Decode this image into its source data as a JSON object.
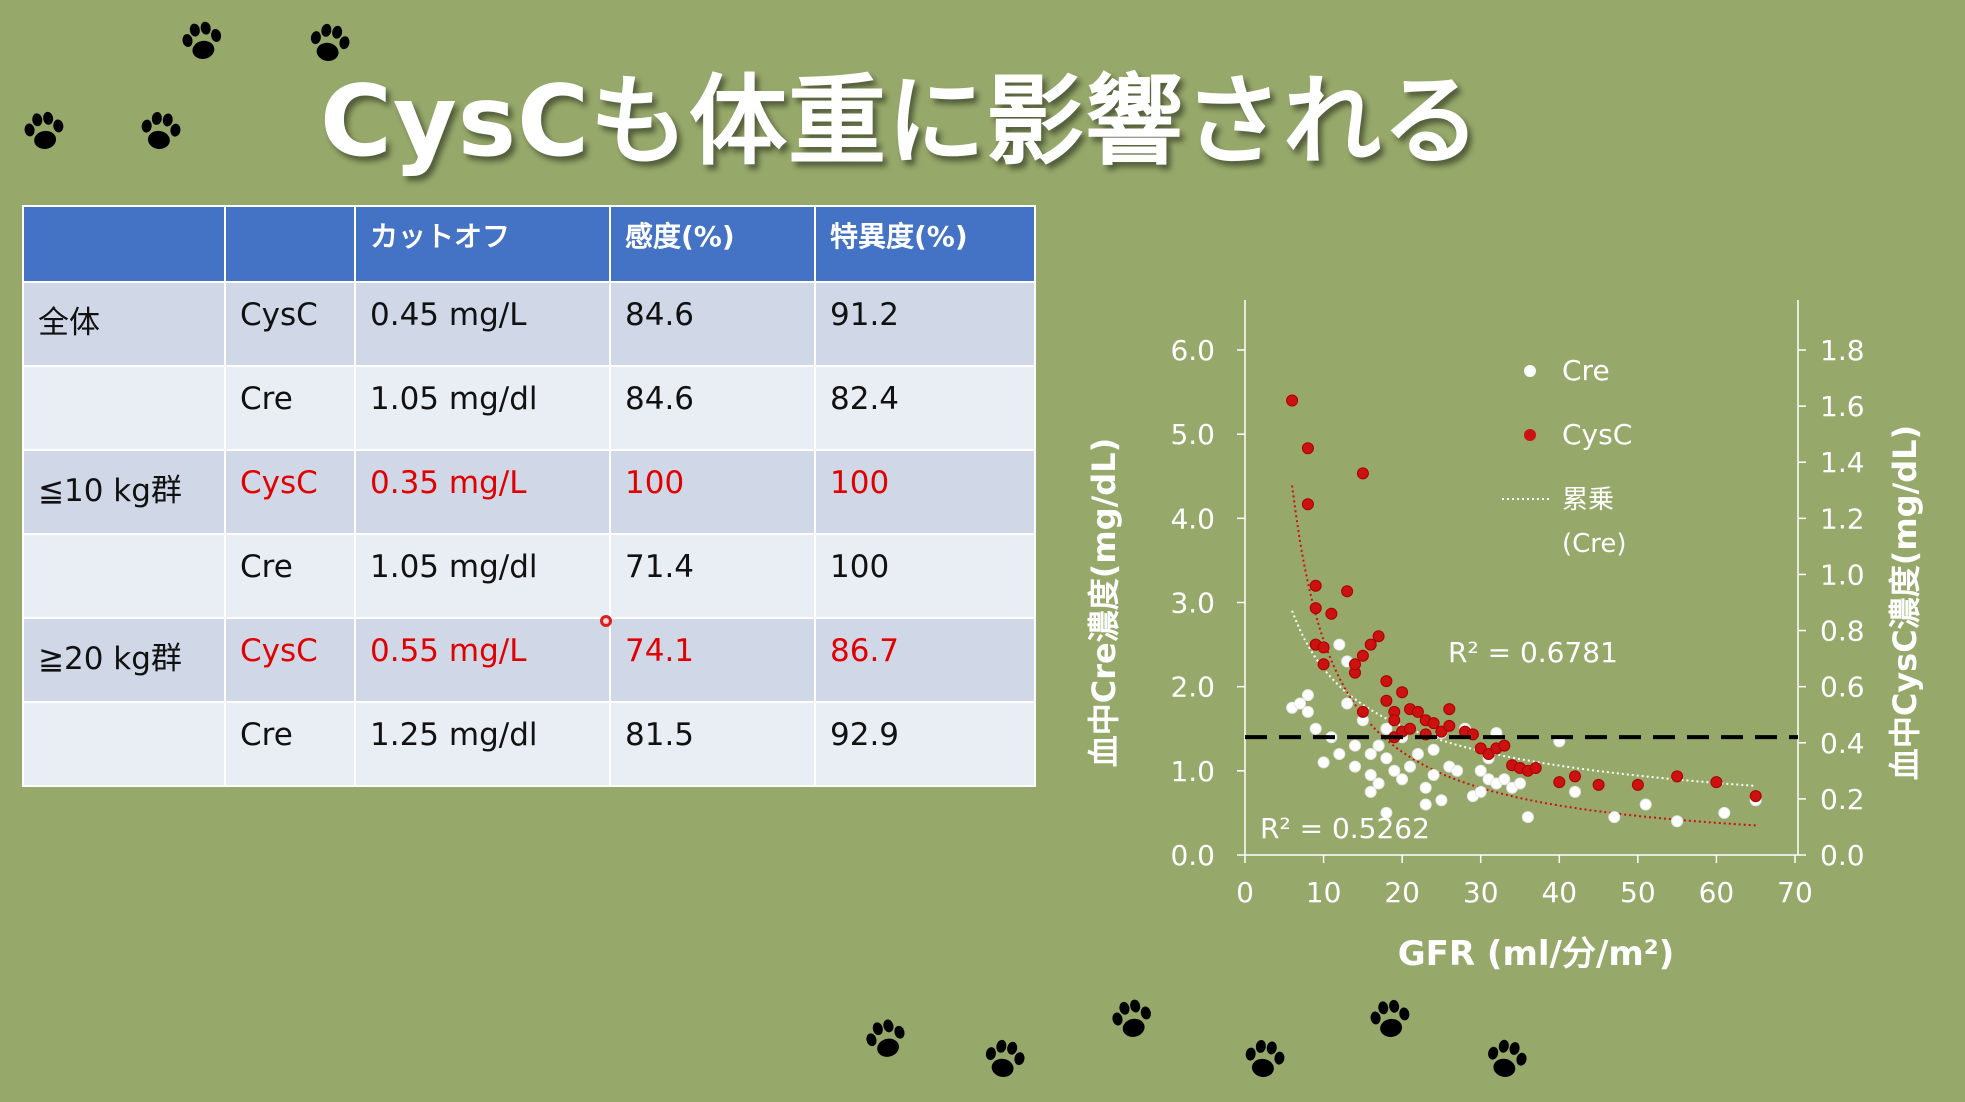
{
  "title": "CysCも体重に影響される",
  "colors": {
    "background": "#96a86a",
    "header": "#4472c4",
    "band": "#d0d8e8",
    "plain": "#e9edf4",
    "highlight": "#e00000",
    "cysc_point": "#cc1111",
    "cre_point": "#ffffff"
  },
  "table": {
    "headers": [
      "",
      "",
      "カットオフ",
      "感度(%)",
      "特異度(%)"
    ],
    "rows": [
      {
        "group": "全体",
        "marker": "CysC",
        "cutoff": "0.45 mg/L",
        "sensitivity": "84.6",
        "specificity": "91.2",
        "highlight": false
      },
      {
        "group": "",
        "marker": "Cre",
        "cutoff": "1.05 mg/dl",
        "sensitivity": "84.6",
        "specificity": "82.4",
        "highlight": false
      },
      {
        "group": "≦10 kg群",
        "marker": "CysC",
        "cutoff": "0.35 mg/L",
        "sensitivity": "100",
        "specificity": "100",
        "highlight": true
      },
      {
        "group": "",
        "marker": "Cre",
        "cutoff": "1.05 mg/dl",
        "sensitivity": "71.4",
        "specificity": "100",
        "highlight": false
      },
      {
        "group": "≧20 kg群",
        "marker": "CysC",
        "cutoff": "0.55 mg/L",
        "sensitivity": "74.1",
        "specificity": "86.7",
        "highlight": true
      },
      {
        "group": "",
        "marker": "Cre",
        "cutoff": "1.25 mg/dl",
        "sensitivity": "81.5",
        "specificity": "92.9",
        "highlight": false
      }
    ]
  },
  "chart_data": {
    "type": "scatter",
    "xlabel": "GFR (ml/分/m²)",
    "ylabel": "血中Cre濃度(mg/dL)",
    "y2label": "血中CysC濃度(mg/dL)",
    "xlim": [
      0,
      70
    ],
    "ylim": [
      0,
      6
    ],
    "y2lim": [
      0,
      1.8
    ],
    "xticks": [
      "0",
      "10",
      "20",
      "30",
      "40",
      "50",
      "60",
      "70"
    ],
    "yticks": [
      "0.0",
      "1.0",
      "2.0",
      "3.0",
      "4.0",
      "5.0",
      "6.0"
    ],
    "y2ticks": [
      "0.0",
      "0.2",
      "0.4",
      "0.6",
      "0.8",
      "1.0",
      "1.2",
      "1.4",
      "1.6",
      "1.8"
    ],
    "legend": {
      "position": "top-right",
      "cre": "Cre",
      "cysc": "CysC",
      "trend_line1": "累乗",
      "trend_line2": "(Cre)"
    },
    "annotations": {
      "r2_cysc": "R² = 0.6781",
      "r2_cre": "R² = 0.5262"
    },
    "cutoff_line_y": 1.4,
    "series": [
      {
        "name": "Cre",
        "axis": "left",
        "points": [
          [
            6,
            1.75
          ],
          [
            7,
            1.8
          ],
          [
            8,
            1.7
          ],
          [
            8,
            1.9
          ],
          [
            9,
            1.5
          ],
          [
            10,
            1.1
          ],
          [
            11,
            1.4
          ],
          [
            12,
            1.2
          ],
          [
            12,
            2.5
          ],
          [
            13,
            2.3
          ],
          [
            13,
            1.8
          ],
          [
            14,
            1.3
          ],
          [
            14,
            1.05
          ],
          [
            15,
            1.7
          ],
          [
            15,
            1.6
          ],
          [
            16,
            1.2
          ],
          [
            16,
            0.95
          ],
          [
            16,
            0.75
          ],
          [
            17,
            1.3
          ],
          [
            17,
            0.85
          ],
          [
            18,
            1.15
          ],
          [
            18,
            1.5
          ],
          [
            18,
            0.5
          ],
          [
            19,
            1.0
          ],
          [
            19,
            1.6
          ],
          [
            20,
            1.4
          ],
          [
            20,
            0.9
          ],
          [
            21,
            1.05
          ],
          [
            22,
            1.2
          ],
          [
            23,
            0.6
          ],
          [
            23,
            0.8
          ],
          [
            24,
            1.25
          ],
          [
            24,
            0.95
          ],
          [
            25,
            0.65
          ],
          [
            25,
            1.45
          ],
          [
            26,
            1.05
          ],
          [
            27,
            1.0
          ],
          [
            28,
            1.5
          ],
          [
            29,
            0.7
          ],
          [
            30,
            1.0
          ],
          [
            30,
            0.75
          ],
          [
            31,
            0.9
          ],
          [
            31,
            1.15
          ],
          [
            32,
            0.85
          ],
          [
            32,
            1.45
          ],
          [
            33,
            0.9
          ],
          [
            34,
            0.8
          ],
          [
            35,
            0.85
          ],
          [
            36,
            0.45
          ],
          [
            40,
            1.35
          ],
          [
            42,
            0.75
          ],
          [
            47,
            0.45
          ],
          [
            51,
            0.6
          ],
          [
            55,
            0.4
          ],
          [
            61,
            0.5
          ],
          [
            65,
            0.65
          ]
        ]
      },
      {
        "name": "CysC",
        "axis": "right",
        "points": [
          [
            6,
            1.62
          ],
          [
            8,
            1.25
          ],
          [
            8,
            1.45
          ],
          [
            9,
            0.88
          ],
          [
            9,
            0.96
          ],
          [
            10,
            0.68
          ],
          [
            9,
            0.75
          ],
          [
            10,
            0.74
          ],
          [
            11,
            0.86
          ],
          [
            13,
            0.94
          ],
          [
            14,
            0.65
          ],
          [
            14,
            0.68
          ],
          [
            15,
            0.71
          ],
          [
            15,
            1.36
          ],
          [
            15,
            0.51
          ],
          [
            16,
            0.75
          ],
          [
            17,
            0.78
          ],
          [
            18,
            0.62
          ],
          [
            18,
            0.55
          ],
          [
            19,
            0.51
          ],
          [
            19,
            0.48
          ],
          [
            19,
            0.42
          ],
          [
            20,
            0.44
          ],
          [
            20,
            0.58
          ],
          [
            21,
            0.45
          ],
          [
            21,
            0.52
          ],
          [
            22,
            0.51
          ],
          [
            23,
            0.43
          ],
          [
            23,
            0.48
          ],
          [
            24,
            0.47
          ],
          [
            25,
            0.44
          ],
          [
            26,
            0.52
          ],
          [
            26,
            0.46
          ],
          [
            28,
            0.44
          ],
          [
            29,
            0.43
          ],
          [
            30,
            0.38
          ],
          [
            31,
            0.36
          ],
          [
            32,
            0.38
          ],
          [
            33,
            0.39
          ],
          [
            34,
            0.32
          ],
          [
            35,
            0.31
          ],
          [
            36,
            0.3
          ],
          [
            37,
            0.31
          ],
          [
            40,
            0.26
          ],
          [
            42,
            0.28
          ],
          [
            45,
            0.25
          ],
          [
            50,
            0.25
          ],
          [
            55,
            0.28
          ],
          [
            60,
            0.26
          ],
          [
            65,
            0.21
          ]
        ]
      }
    ]
  }
}
